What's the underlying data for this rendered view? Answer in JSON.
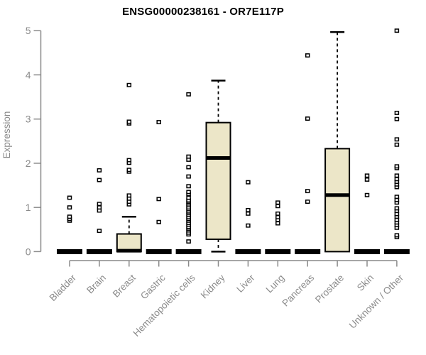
{
  "chart_data": {
    "type": "boxplot",
    "title": "ENSG00000238161 - OR7E117P",
    "xlabel": "",
    "ylabel": "Expression",
    "ylim": [
      0,
      5
    ],
    "yticks": [
      0,
      1,
      2,
      3,
      4,
      5
    ],
    "grid": false,
    "legend": "none",
    "categories": [
      "Bladder",
      "Brain",
      "Breast",
      "Gastric",
      "Hematopoietic cells",
      "Kidney",
      "Liver",
      "Lung",
      "Pancreas",
      "Prostate",
      "Skin",
      "Unknown / Other"
    ],
    "boxes": [
      {
        "category": "Bladder",
        "q1": 0,
        "median": 0,
        "q3": 0,
        "whisker_low": 0,
        "whisker_high": 0,
        "outliers": [
          0.7,
          0.74,
          0.79,
          1.0,
          1.22
        ]
      },
      {
        "category": "Brain",
        "q1": 0,
        "median": 0,
        "q3": 0,
        "whisker_low": 0,
        "whisker_high": 0,
        "outliers": [
          0.47,
          0.93,
          1.0,
          1.08,
          1.62,
          1.84
        ]
      },
      {
        "category": "Breast",
        "q1": 0,
        "median": 0.02,
        "q3": 0.4,
        "whisker_low": 0,
        "whisker_high": 0.79,
        "outliers": [
          1.07,
          1.13,
          1.2,
          1.27,
          1.81,
          1.85,
          2.01,
          2.07,
          2.9,
          2.94,
          3.77
        ]
      },
      {
        "category": "Gastric",
        "q1": 0,
        "median": 0,
        "q3": 0,
        "whisker_low": 0,
        "whisker_high": 0,
        "outliers": [
          0.67,
          1.19,
          2.93
        ]
      },
      {
        "category": "Hematopoietic cells",
        "q1": 0,
        "median": 0,
        "q3": 0,
        "whisker_low": 0,
        "whisker_high": 0,
        "outliers": [
          0.23,
          0.39,
          0.43,
          0.48,
          0.52,
          0.56,
          0.61,
          0.65,
          0.7,
          0.74,
          0.78,
          0.83,
          0.87,
          0.91,
          0.96,
          1.0,
          1.05,
          1.09,
          1.13,
          1.16,
          1.22,
          1.3,
          1.35,
          1.48,
          1.7,
          1.91,
          2.08,
          2.15,
          3.56
        ]
      },
      {
        "category": "Kidney",
        "q1": 0.28,
        "median": 2.12,
        "q3": 2.92,
        "whisker_low": 0,
        "whisker_high": 3.87,
        "outliers": []
      },
      {
        "category": "Liver",
        "q1": 0,
        "median": 0,
        "q3": 0,
        "whisker_low": 0,
        "whisker_high": 0,
        "outliers": [
          0.59,
          0.86,
          0.94,
          1.57
        ]
      },
      {
        "category": "Lung",
        "q1": 0,
        "median": 0,
        "q3": 0,
        "whisker_low": 0,
        "whisker_high": 0,
        "outliers": [
          0.64,
          0.72,
          0.78,
          0.86,
          1.03,
          1.11
        ]
      },
      {
        "category": "Pancreas",
        "q1": 0,
        "median": 0,
        "q3": 0,
        "whisker_low": 0,
        "whisker_high": 0,
        "outliers": [
          1.13,
          1.37,
          3.01,
          4.44
        ]
      },
      {
        "category": "Prostate",
        "q1": 0,
        "median": 1.28,
        "q3": 2.33,
        "whisker_low": 0,
        "whisker_high": 4.97,
        "outliers": []
      },
      {
        "category": "Skin",
        "q1": 0,
        "median": 0,
        "q3": 0,
        "whisker_low": 0,
        "whisker_high": 0,
        "outliers": [
          1.28,
          1.63,
          1.72
        ]
      },
      {
        "category": "Unknown / Other",
        "q1": 0,
        "median": 0,
        "q3": 0,
        "whisker_low": 0,
        "whisker_high": 0,
        "outliers": [
          0.33,
          0.37,
          0.54,
          0.6,
          0.66,
          0.72,
          0.79,
          0.85,
          0.92,
          0.98,
          1.11,
          1.17,
          1.24,
          1.46,
          1.52,
          1.58,
          1.64,
          1.72,
          1.89,
          1.93,
          2.42,
          2.54,
          3.0,
          3.14,
          5.0
        ]
      }
    ],
    "colors": {
      "box_fill": "#ECE6C8",
      "box_border": "#000000",
      "axis": "#8a8a8a",
      "title": "#000000",
      "background": "#ffffff"
    }
  }
}
